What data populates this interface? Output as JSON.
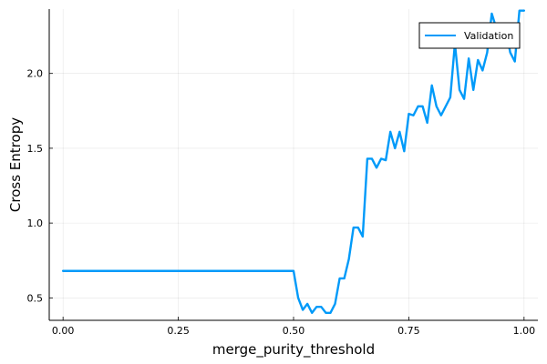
{
  "chart_data": {
    "type": "line",
    "title": "",
    "xlabel": "merge_purity_threshold",
    "ylabel": "Cross Entropy",
    "xlim": [
      -0.03,
      1.03
    ],
    "ylim": [
      0.35,
      2.43
    ],
    "grid": true,
    "legend_position": "top-right",
    "x_ticks": [
      {
        "value": 0.0,
        "label": "0.00"
      },
      {
        "value": 0.25,
        "label": "0.25"
      },
      {
        "value": 0.5,
        "label": "0.50"
      },
      {
        "value": 0.75,
        "label": "0.75"
      },
      {
        "value": 1.0,
        "label": "1.00"
      }
    ],
    "y_ticks": [
      {
        "value": 0.5,
        "label": "0.5"
      },
      {
        "value": 1.0,
        "label": "1.0"
      },
      {
        "value": 1.5,
        "label": "1.5"
      },
      {
        "value": 2.0,
        "label": "2.0"
      }
    ],
    "series": [
      {
        "name": "Validation",
        "color": "#009af9",
        "x": [
          0.0,
          0.5,
          0.51,
          0.52,
          0.53,
          0.54,
          0.55,
          0.56,
          0.57,
          0.58,
          0.59,
          0.6,
          0.61,
          0.62,
          0.63,
          0.64,
          0.65,
          0.66,
          0.67,
          0.68,
          0.69,
          0.7,
          0.71,
          0.72,
          0.73,
          0.74,
          0.75,
          0.76,
          0.77,
          0.78,
          0.79,
          0.8,
          0.81,
          0.82,
          0.83,
          0.84,
          0.85,
          0.86,
          0.87,
          0.88,
          0.89,
          0.9,
          0.91,
          0.92,
          0.93,
          0.94,
          0.95,
          0.96,
          0.97,
          0.98,
          0.99,
          1.0
        ],
        "values": [
          0.68,
          0.68,
          0.5,
          0.42,
          0.46,
          0.4,
          0.44,
          0.44,
          0.4,
          0.4,
          0.46,
          0.63,
          0.63,
          0.76,
          0.97,
          0.97,
          0.91,
          1.43,
          1.43,
          1.37,
          1.43,
          1.42,
          1.61,
          1.5,
          1.61,
          1.48,
          1.73,
          1.72,
          1.78,
          1.78,
          1.67,
          1.92,
          1.78,
          1.72,
          1.78,
          1.84,
          2.2,
          1.89,
          1.83,
          2.1,
          1.89,
          2.09,
          2.02,
          2.14,
          2.4,
          2.3,
          2.19,
          2.3,
          2.14,
          2.08,
          2.42,
          2.42
        ]
      }
    ]
  }
}
